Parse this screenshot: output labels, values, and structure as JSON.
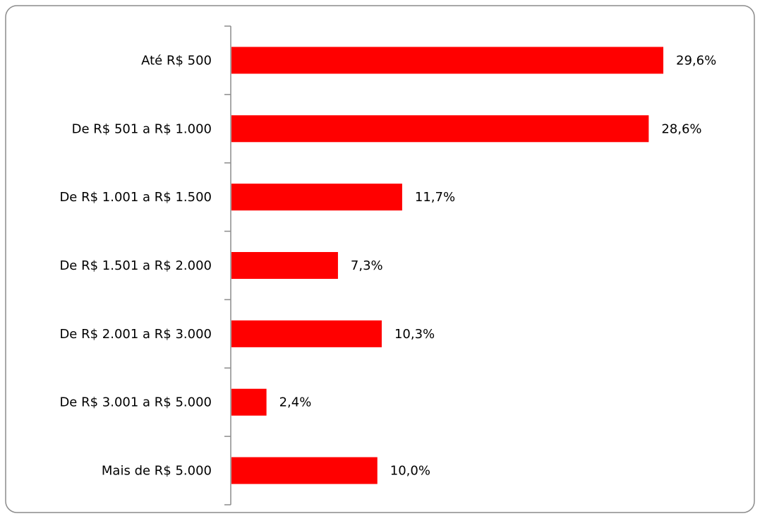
{
  "chart_data": {
    "type": "bar",
    "orientation": "horizontal",
    "categories": [
      "Até R$ 500",
      "De R$ 501 a R$ 1.000",
      "De R$ 1.001 a R$ 1.500",
      "De R$ 1.501 a R$ 2.000",
      "De R$ 2.001 a R$ 3.000",
      "De R$ 3.001 a R$ 5.000",
      "Mais de R$ 5.000"
    ],
    "values": [
      29.6,
      28.6,
      11.7,
      7.3,
      10.3,
      2.4,
      10.0
    ],
    "value_labels": [
      "29,6%",
      "28,6%",
      "11,7%",
      "7,3%",
      "10,3%",
      "2,4%",
      "10,0%"
    ],
    "color": "#ff0000"
  }
}
